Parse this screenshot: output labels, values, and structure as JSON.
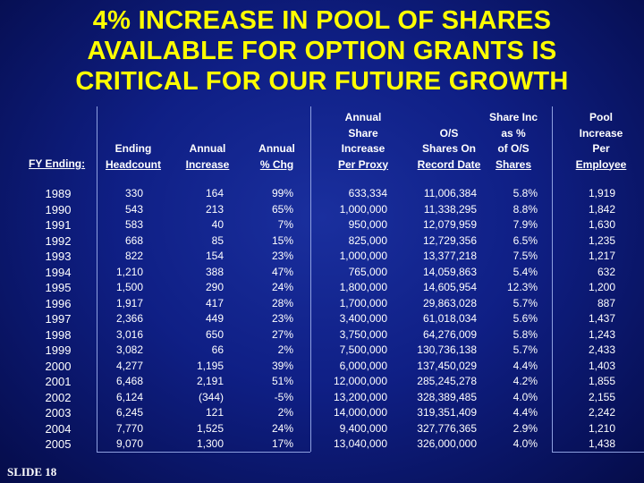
{
  "title": {
    "line1": "4% INCREASE IN POOL OF SHARES",
    "line2": "AVAILABLE FOR OPTION GRANTS IS",
    "line3": "CRITICAL FOR OUR FUTURE GROWTH"
  },
  "headers": {
    "fy": [
      "FY Ending:"
    ],
    "headcount": [
      "Ending",
      "Headcount"
    ],
    "annual_increase": [
      "Annual",
      "Increase"
    ],
    "annual_pct": [
      "Annual",
      "% Chg"
    ],
    "proxy": [
      "Annual",
      "Share",
      "Increase",
      "Per Proxy"
    ],
    "os_shares": [
      "O/S",
      "Shares On",
      "Record Date"
    ],
    "share_inc": [
      "Share Inc",
      "as %",
      "of O/S",
      "Shares"
    ],
    "pool": [
      "Pool",
      "Increase",
      "Per",
      "Employee"
    ]
  },
  "rows": [
    {
      "year": "1989",
      "headcount": "330",
      "increase": "164",
      "pct": "99%",
      "proxy": "633,334",
      "os": "11,006,384",
      "share_pct": "5.8%",
      "pool": "1,919"
    },
    {
      "year": "1990",
      "headcount": "543",
      "increase": "213",
      "pct": "65%",
      "proxy": "1,000,000",
      "os": "11,338,295",
      "share_pct": "8.8%",
      "pool": "1,842"
    },
    {
      "year": "1991",
      "headcount": "583",
      "increase": "40",
      "pct": "7%",
      "proxy": "950,000",
      "os": "12,079,959",
      "share_pct": "7.9%",
      "pool": "1,630"
    },
    {
      "year": "1992",
      "headcount": "668",
      "increase": "85",
      "pct": "15%",
      "proxy": "825,000",
      "os": "12,729,356",
      "share_pct": "6.5%",
      "pool": "1,235"
    },
    {
      "year": "1993",
      "headcount": "822",
      "increase": "154",
      "pct": "23%",
      "proxy": "1,000,000",
      "os": "13,377,218",
      "share_pct": "7.5%",
      "pool": "1,217"
    },
    {
      "year": "1994",
      "headcount": "1,210",
      "increase": "388",
      "pct": "47%",
      "proxy": "765,000",
      "os": "14,059,863",
      "share_pct": "5.4%",
      "pool": "632"
    },
    {
      "year": "1995",
      "headcount": "1,500",
      "increase": "290",
      "pct": "24%",
      "proxy": "1,800,000",
      "os": "14,605,954",
      "share_pct": "12.3%",
      "pool": "1,200"
    },
    {
      "year": "1996",
      "headcount": "1,917",
      "increase": "417",
      "pct": "28%",
      "proxy": "1,700,000",
      "os": "29,863,028",
      "share_pct": "5.7%",
      "pool": "887"
    },
    {
      "year": "1997",
      "headcount": "2,366",
      "increase": "449",
      "pct": "23%",
      "proxy": "3,400,000",
      "os": "61,018,034",
      "share_pct": "5.6%",
      "pool": "1,437"
    },
    {
      "year": "1998",
      "headcount": "3,016",
      "increase": "650",
      "pct": "27%",
      "proxy": "3,750,000",
      "os": "64,276,009",
      "share_pct": "5.8%",
      "pool": "1,243"
    },
    {
      "year": "1999",
      "headcount": "3,082",
      "increase": "66",
      "pct": "2%",
      "proxy": "7,500,000",
      "os": "130,736,138",
      "share_pct": "5.7%",
      "pool": "2,433"
    },
    {
      "year": "2000",
      "headcount": "4,277",
      "increase": "1,195",
      "pct": "39%",
      "proxy": "6,000,000",
      "os": "137,450,029",
      "share_pct": "4.4%",
      "pool": "1,403"
    },
    {
      "year": "2001",
      "headcount": "6,468",
      "increase": "2,191",
      "pct": "51%",
      "proxy": "12,000,000",
      "os": "285,245,278",
      "share_pct": "4.2%",
      "pool": "1,855"
    },
    {
      "year": "2002",
      "headcount": "6,124",
      "increase": "(344)",
      "pct": "-5%",
      "proxy": "13,200,000",
      "os": "328,389,485",
      "share_pct": "4.0%",
      "pool": "2,155"
    },
    {
      "year": "2003",
      "headcount": "6,245",
      "increase": "121",
      "pct": "2%",
      "proxy": "14,000,000",
      "os": "319,351,409",
      "share_pct": "4.4%",
      "pool": "2,242"
    },
    {
      "year": "2004",
      "headcount": "7,770",
      "increase": "1,525",
      "pct": "24%",
      "proxy": "9,400,000",
      "os": "327,776,365",
      "share_pct": "2.9%",
      "pool": "1,210"
    },
    {
      "year": "2005",
      "headcount": "9,070",
      "increase": "1,300",
      "pct": "17%",
      "proxy": "13,040,000",
      "os": "326,000,000",
      "share_pct": "4.0%",
      "pool": "1,438"
    }
  ],
  "slide_label": "SLIDE 18"
}
